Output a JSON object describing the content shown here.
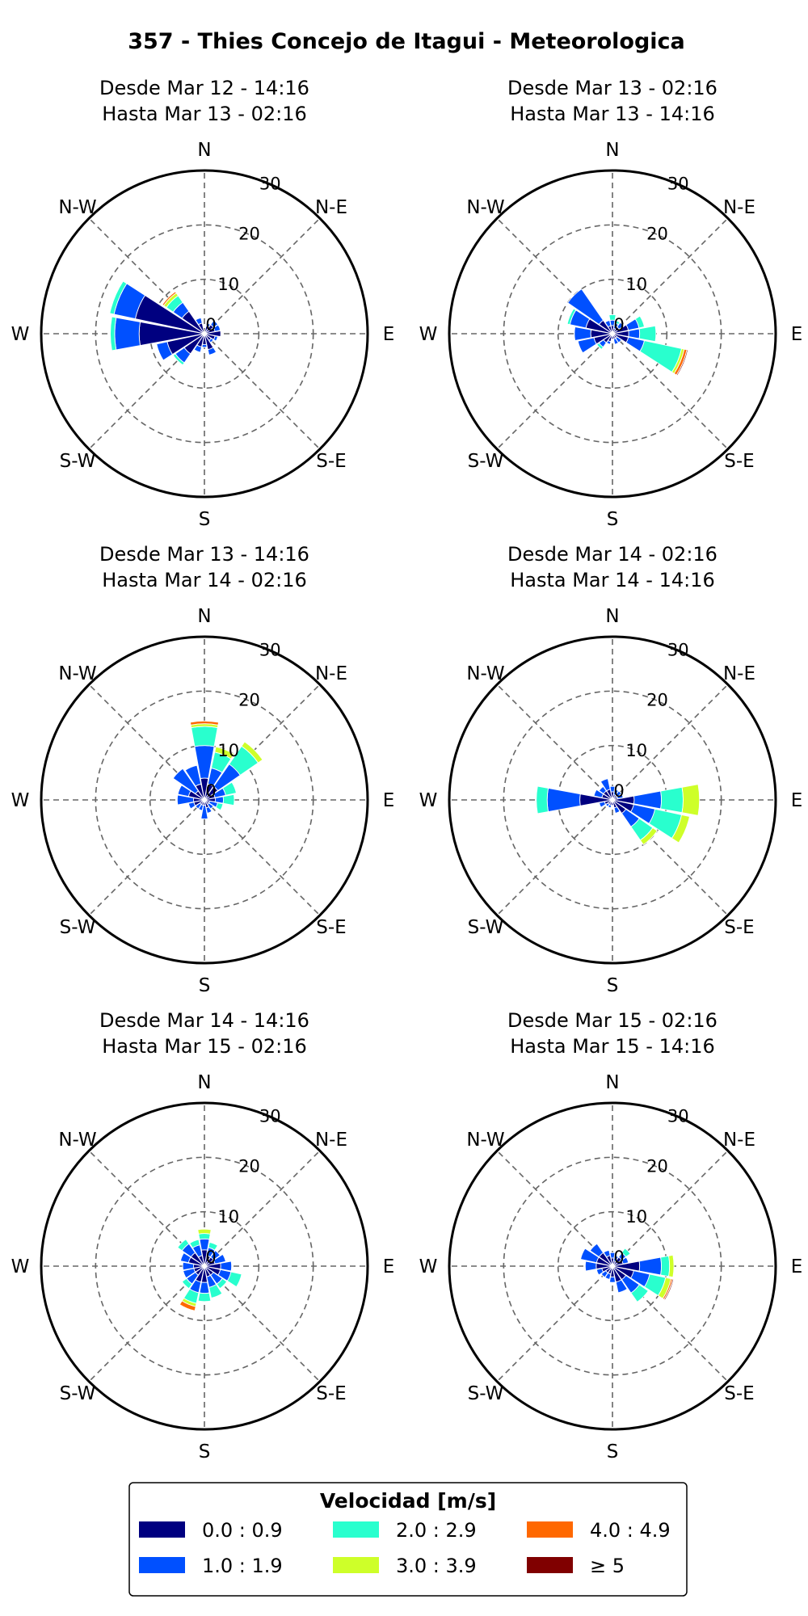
{
  "chart_data": {
    "type": "windrose",
    "title": "357 - Thies Concejo de Itagui - Meteorologica",
    "direction_labels": [
      "N",
      "N-E",
      "E",
      "S-E",
      "S",
      "S-W",
      "W",
      "N-W"
    ],
    "radial_ticks": [
      0,
      10,
      20,
      30
    ],
    "radial_max": 30,
    "sectors": 16,
    "legend": {
      "title": "Velocidad [m/s]",
      "bins": [
        {
          "label": "0.0 : 0.9",
          "color": "#000080"
        },
        {
          "label": "1.0 : 1.9",
          "color": "#0050ff"
        },
        {
          "label": "2.0 : 2.9",
          "color": "#29ffce"
        },
        {
          "label": "3.0 : 3.9",
          "color": "#ceff29"
        },
        {
          "label": "4.0 : 4.9",
          "color": "#ff6800"
        },
        {
          "label": "≥ 5",
          "color": "#800000"
        }
      ]
    },
    "panels": [
      {
        "line1": "Desde Mar 12 - 14:16",
        "line2": "Hasta Mar 13 - 02:16",
        "freq": [
          [
            0,
            0,
            0,
            0,
            0,
            0
          ],
          [
            1.5,
            0.5,
            0,
            0,
            0,
            0
          ],
          [
            2,
            1,
            0,
            0,
            0,
            0
          ],
          [
            2,
            1,
            0,
            0,
            0,
            0
          ],
          [
            3,
            0,
            0,
            0,
            0,
            0
          ],
          [
            2,
            0.5,
            0,
            0,
            0,
            0
          ],
          [
            1.5,
            0.5,
            0,
            0,
            0,
            0
          ],
          [
            3,
            1,
            0,
            0,
            0,
            0
          ],
          [
            2,
            0.5,
            0,
            0,
            0,
            0
          ],
          [
            2.5,
            1,
            0,
            0,
            0,
            0
          ],
          [
            4.5,
            2,
            0.5,
            0,
            0,
            0
          ],
          [
            7,
            2,
            0,
            0,
            0,
            0
          ],
          [
            12,
            4.5,
            0.8,
            0,
            0,
            0
          ],
          [
            13,
            4,
            0.8,
            0,
            0,
            0
          ],
          [
            5,
            2,
            1.5,
            0.6,
            0.3,
            0
          ],
          [
            2,
            1,
            0,
            0,
            0,
            0
          ]
        ]
      },
      {
        "line1": "Desde Mar 13 - 02:16",
        "line2": "Hasta Mar 13 - 14:16",
        "freq": [
          [
            1.5,
            1,
            1,
            0,
            0,
            0
          ],
          [
            1,
            1,
            0.5,
            0,
            0,
            0
          ],
          [
            1.5,
            1,
            0,
            0,
            0,
            0
          ],
          [
            3,
            2,
            1,
            0,
            0,
            0
          ],
          [
            3,
            2,
            3,
            0,
            0,
            0
          ],
          [
            3,
            3,
            7,
            0.5,
            0.5,
            0.2
          ],
          [
            1,
            1,
            0,
            0,
            0,
            0
          ],
          [
            1,
            1,
            0,
            0,
            0,
            0
          ],
          [
            1,
            0,
            0,
            0,
            0,
            0
          ],
          [
            1.5,
            0.5,
            0,
            0,
            0,
            0
          ],
          [
            2,
            1,
            0.5,
            0,
            0,
            0
          ],
          [
            3.5,
            3,
            0,
            0,
            0,
            0
          ],
          [
            4,
            3,
            0,
            0,
            0,
            0
          ],
          [
            5,
            3,
            0.5,
            0,
            0,
            0
          ],
          [
            3,
            7,
            0,
            0,
            0,
            0
          ],
          [
            1.5,
            1,
            0,
            0,
            0,
            0
          ]
        ]
      },
      {
        "line1": "Desde Mar 13 - 14:16",
        "line2": "Hasta Mar 14 - 02:16",
        "freq": [
          [
            4,
            6,
            3.5,
            0.5,
            0.5,
            0
          ],
          [
            3,
            3,
            3,
            1,
            0,
            0
          ],
          [
            3,
            5,
            4,
            1,
            0,
            0
          ],
          [
            2,
            2,
            2,
            0,
            0,
            0
          ],
          [
            2,
            1.5,
            2,
            0,
            0,
            0
          ],
          [
            1,
            1.5,
            1,
            0,
            0,
            0
          ],
          [
            1,
            1,
            0,
            0,
            0,
            0
          ],
          [
            1.5,
            1,
            0,
            0,
            0,
            0
          ],
          [
            1,
            2.5,
            0,
            0,
            0,
            0
          ],
          [
            1,
            1,
            0,
            0,
            0,
            0
          ],
          [
            1,
            1,
            0,
            0,
            0,
            0
          ],
          [
            2,
            1,
            0,
            0,
            0,
            0
          ],
          [
            2,
            3,
            0,
            0,
            0,
            0
          ],
          [
            3,
            2,
            0,
            0,
            0,
            0
          ],
          [
            2,
            5,
            0,
            0,
            0,
            0
          ],
          [
            3,
            3.5,
            0,
            0,
            0,
            0
          ]
        ]
      },
      {
        "line1": "Desde Mar 14 - 02:16",
        "line2": "Hasta Mar 14 - 14:16",
        "freq": [
          [
            1.5,
            1,
            0,
            0,
            0,
            0
          ],
          [
            1,
            1,
            0,
            0,
            0,
            0
          ],
          [
            1,
            1,
            0,
            0,
            0,
            0
          ],
          [
            1,
            1,
            0,
            0,
            0,
            0
          ],
          [
            4,
            5,
            4,
            3,
            0,
            0
          ],
          [
            4,
            4,
            5,
            1.5,
            0,
            0
          ],
          [
            3,
            3,
            3,
            1,
            0,
            0
          ],
          [
            1.5,
            1,
            0,
            0,
            0,
            0
          ],
          [
            1,
            0,
            0,
            0,
            0,
            0
          ],
          [
            1,
            0.5,
            0,
            0,
            0,
            0
          ],
          [
            1,
            0.5,
            0,
            0,
            0,
            0
          ],
          [
            1.5,
            1,
            0,
            0,
            0,
            0
          ],
          [
            6,
            6,
            2,
            0,
            0,
            0
          ],
          [
            2,
            1.5,
            0,
            0,
            0,
            0
          ],
          [
            2,
            1,
            0,
            0,
            0,
            0
          ],
          [
            2,
            2,
            0,
            0,
            0,
            0
          ]
        ]
      },
      {
        "line1": "Desde Mar 14 - 14:16",
        "line2": "Hasta Mar 15 - 02:16",
        "freq": [
          [
            3,
            2,
            1,
            0.8,
            0,
            0
          ],
          [
            2,
            1.5,
            1,
            0,
            0,
            0
          ],
          [
            2,
            1.5,
            0,
            0,
            0,
            0
          ],
          [
            2,
            2,
            0,
            0,
            0,
            0
          ],
          [
            3,
            2,
            0,
            0,
            0,
            0
          ],
          [
            3,
            2,
            2,
            0,
            0,
            0
          ],
          [
            2,
            2,
            1,
            0,
            0,
            0
          ],
          [
            2,
            2,
            2,
            0,
            0,
            0
          ],
          [
            3,
            2,
            1.5,
            0,
            0,
            0
          ],
          [
            3,
            2,
            2,
            0.6,
            0.8,
            0
          ],
          [
            2,
            2,
            1,
            0,
            0,
            0
          ],
          [
            2,
            2,
            0,
            0,
            0,
            0
          ],
          [
            2,
            2,
            0,
            0,
            0,
            0
          ],
          [
            3,
            1.5,
            0,
            0,
            0,
            0
          ],
          [
            3,
            2,
            1,
            0,
            0,
            0
          ],
          [
            2,
            2,
            1,
            0,
            0,
            0
          ]
        ]
      },
      {
        "line1": "Desde Mar 15 - 02:16",
        "line2": "Hasta Mar 15 - 14:16",
        "freq": [
          [
            1.5,
            1,
            0,
            0,
            0,
            0
          ],
          [
            1,
            1,
            0,
            0,
            0,
            0
          ],
          [
            2,
            1,
            1,
            0,
            0,
            0
          ],
          [
            2,
            1,
            0,
            0,
            0,
            0
          ],
          [
            5,
            4,
            1.5,
            0.8,
            0,
            0
          ],
          [
            4,
            3,
            3,
            1,
            0.3,
            0.2
          ],
          [
            3,
            3,
            2,
            0,
            0,
            0
          ],
          [
            3,
            2,
            0,
            0,
            0,
            0
          ],
          [
            2,
            1,
            0,
            0,
            0,
            0
          ],
          [
            1.5,
            1,
            0,
            0,
            0,
            0
          ],
          [
            1.5,
            1,
            0,
            0,
            0,
            0
          ],
          [
            2,
            1,
            0,
            0,
            0,
            0
          ],
          [
            3,
            2,
            0,
            0,
            0,
            0
          ],
          [
            3,
            3,
            0,
            0,
            0,
            0
          ],
          [
            3,
            2,
            0,
            0,
            0,
            0
          ],
          [
            2,
            1,
            0,
            0,
            0,
            0
          ]
        ]
      }
    ]
  }
}
